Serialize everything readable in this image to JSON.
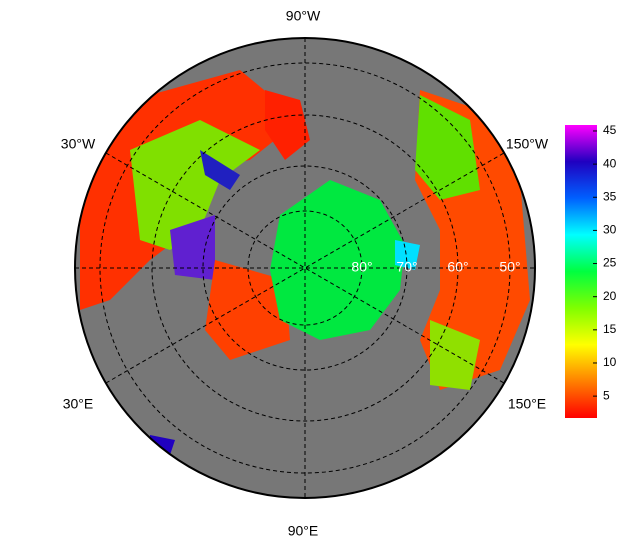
{
  "map": {
    "longitude_labels": [
      "90°W",
      "30°W",
      "150°W",
      "30°E",
      "150°E",
      "90°E"
    ],
    "latitude_labels": [
      "80°",
      "70°",
      "60°",
      "50°"
    ],
    "colorbar": {
      "lim": [
        1.7,
        45.9
      ],
      "ticks": [
        5,
        10,
        15,
        20,
        25,
        30,
        35,
        40,
        45
      ],
      "colors": [
        "#ff0000",
        "#ff8000",
        "#ffff00",
        "#80ff00",
        "#00ff40",
        "#00ffff",
        "#0060ff",
        "#2000c0",
        "#ff00ff"
      ]
    }
  }
}
